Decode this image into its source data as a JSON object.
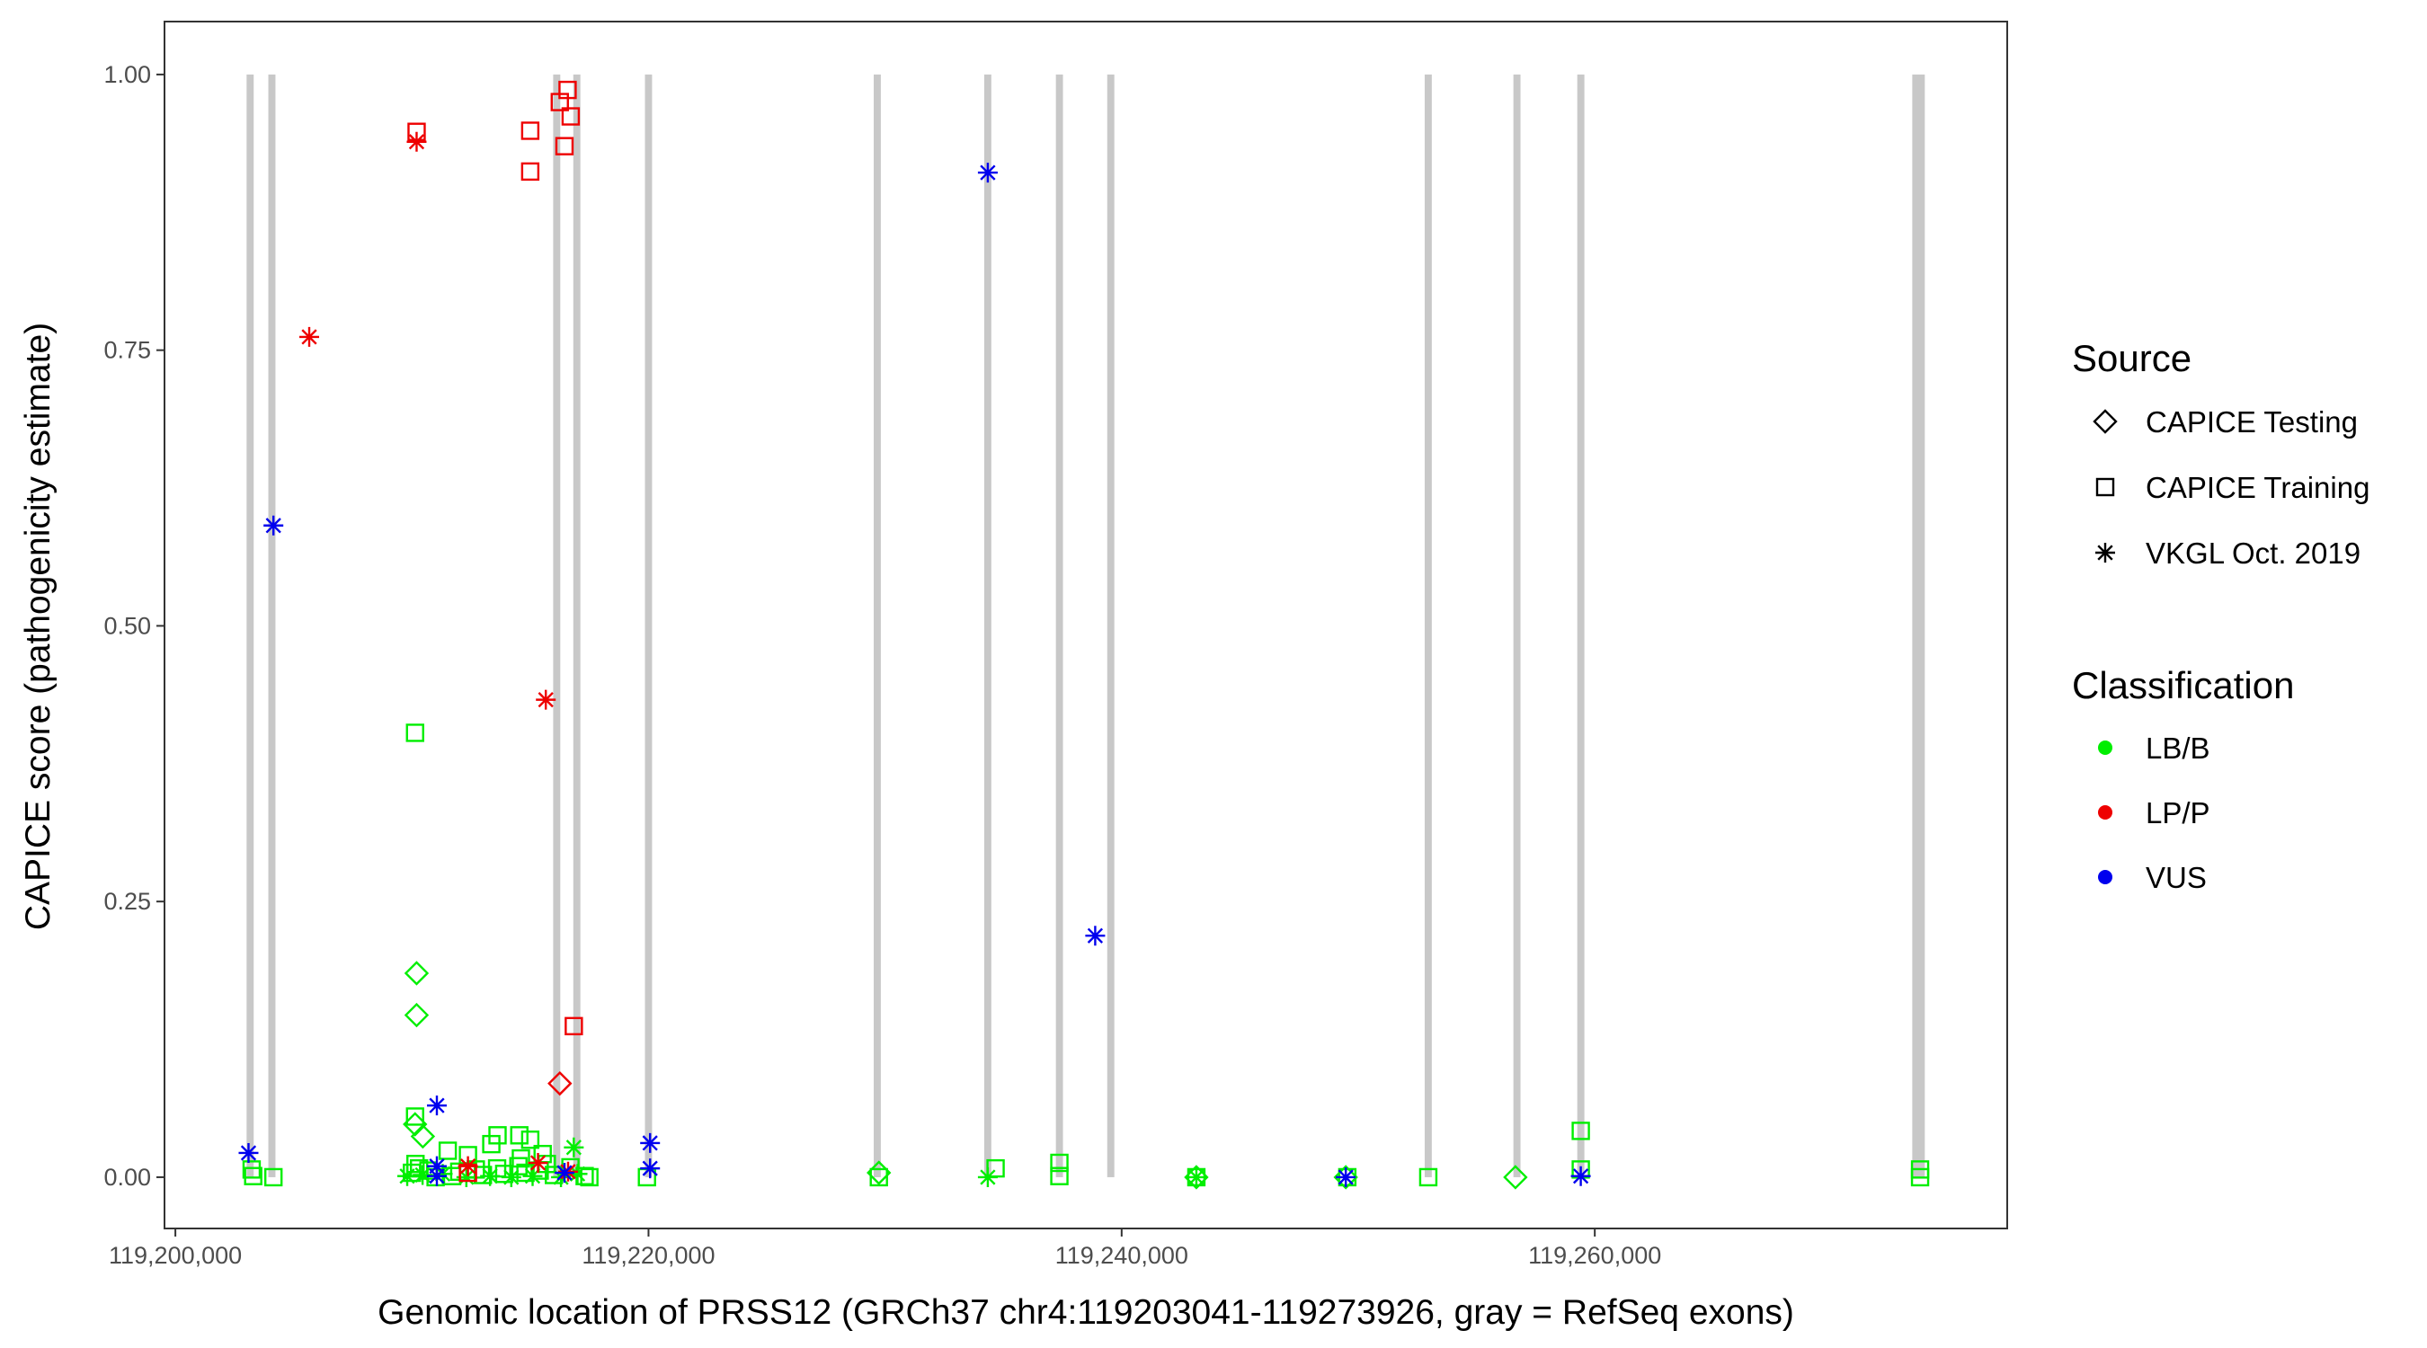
{
  "chart_data": {
    "type": "scatter",
    "title": "",
    "xlabel": "Genomic location of PRSS12 (GRCh37 chr4:119203041-119273926, gray = RefSeq exons)",
    "ylabel": "CAPICE score (pathogenicity estimate)",
    "xlim": [
      119199540,
      119277434
    ],
    "ylim": [
      -0.0465,
      1.048
    ],
    "x_ticks": [
      119200000,
      119220000,
      119240000,
      119260000
    ],
    "x_tick_labels": [
      "119,200,000",
      "119,220,000",
      "119,240,000",
      "119,260,000"
    ],
    "y_ticks": [
      0,
      0.25,
      0.5,
      0.75,
      1.0
    ],
    "y_tick_labels": [
      "0.00",
      "0.25",
      "0.50",
      "0.75",
      "1.00"
    ],
    "grid": false,
    "exon_color": "#c8c8c8",
    "exons": [
      [
        119203010,
        119203310
      ],
      [
        119203930,
        119204230
      ],
      [
        119215970,
        119216270
      ],
      [
        119216820,
        119217120
      ],
      [
        119219850,
        119220150
      ],
      [
        119229520,
        119229820
      ],
      [
        119234190,
        119234490
      ],
      [
        119237220,
        119237520
      ],
      [
        119239390,
        119239690
      ],
      [
        119252810,
        119253110
      ],
      [
        119256560,
        119256860
      ],
      [
        119259260,
        119259560
      ],
      [
        119273420,
        119273950
      ]
    ],
    "legend_placement": "right",
    "legend_source": {
      "title": "Source",
      "items": [
        {
          "label": "CAPICE Testing",
          "shape": "diamond"
        },
        {
          "label": "CAPICE Training",
          "shape": "square"
        },
        {
          "label": "VKGL Oct. 2019",
          "shape": "asterisk"
        }
      ]
    },
    "legend_classification": {
      "title": "Classification",
      "items": [
        {
          "label": "LB/B",
          "color": "#00ee00"
        },
        {
          "label": "LP/P",
          "color": "#ee0000"
        },
        {
          "label": "VUS",
          "color": "#0000ee"
        }
      ]
    },
    "point_fields": [
      "position",
      "capice_score",
      "source_index",
      "classification_index"
    ],
    "points": [
      [
        119210132,
        0.403,
        1,
        0
      ],
      [
        119210197,
        0.185,
        0,
        0
      ],
      [
        119210197,
        0.147,
        0,
        0
      ],
      [
        119210132,
        0.055,
        1,
        0
      ],
      [
        119210132,
        0.048,
        0,
        0
      ],
      [
        119210460,
        0.037,
        0,
        0
      ],
      [
        119211513,
        0.024,
        1,
        0
      ],
      [
        119212368,
        0.02,
        1,
        0
      ],
      [
        119213355,
        0.03,
        1,
        0
      ],
      [
        119213618,
        0.038,
        1,
        0
      ],
      [
        119214539,
        0.038,
        1,
        0
      ],
      [
        119215000,
        0.034,
        1,
        0
      ],
      [
        119215526,
        0.021,
        1,
        0
      ],
      [
        119214605,
        0.017,
        1,
        0
      ],
      [
        119216842,
        0.027,
        2,
        0
      ],
      [
        119209800,
        0.001,
        2,
        0
      ],
      [
        119210000,
        0.004,
        1,
        0
      ],
      [
        119210150,
        0.012,
        1,
        0
      ],
      [
        119210300,
        0.008,
        1,
        0
      ],
      [
        119210450,
        0.002,
        2,
        0
      ],
      [
        119210700,
        0.006,
        1,
        0
      ],
      [
        119211000,
        0.0,
        1,
        0
      ],
      [
        119211300,
        0.003,
        2,
        0
      ],
      [
        119211700,
        0.001,
        1,
        0
      ],
      [
        119212000,
        0.005,
        1,
        0
      ],
      [
        119212300,
        0.0,
        2,
        0
      ],
      [
        119212700,
        0.007,
        1,
        0
      ],
      [
        119213000,
        0.002,
        1,
        0
      ],
      [
        119213300,
        0.001,
        2,
        0
      ],
      [
        119213600,
        0.008,
        1,
        0
      ],
      [
        119213900,
        0.003,
        1,
        0
      ],
      [
        119214200,
        0.0,
        2,
        0
      ],
      [
        119214500,
        0.01,
        1,
        0
      ],
      [
        119214800,
        0.004,
        1,
        0
      ],
      [
        119215100,
        0.001,
        2,
        0
      ],
      [
        119215400,
        0.006,
        1,
        0
      ],
      [
        119215700,
        0.012,
        1,
        0
      ],
      [
        119216000,
        0.002,
        1,
        0
      ],
      [
        119216300,
        0.0,
        2,
        0
      ],
      [
        119216700,
        0.009,
        1,
        0
      ],
      [
        119217000,
        0.003,
        2,
        0
      ],
      [
        119217300,
        0.001,
        1,
        0
      ],
      [
        119217500,
        0.0,
        1,
        0
      ],
      [
        119203224,
        0.007,
        1,
        0
      ],
      [
        119203290,
        0.001,
        1,
        0
      ],
      [
        119204145,
        0.0,
        1,
        0
      ],
      [
        119219934,
        0.0,
        1,
        0
      ],
      [
        119229737,
        0.004,
        0,
        0
      ],
      [
        119229737,
        0.0,
        1,
        0
      ],
      [
        119234671,
        0.008,
        1,
        0
      ],
      [
        119234342,
        0.0,
        2,
        0
      ],
      [
        119237368,
        0.013,
        1,
        0
      ],
      [
        119237368,
        0.001,
        1,
        0
      ],
      [
        119243158,
        0.0,
        0,
        0
      ],
      [
        119243158,
        0.0,
        1,
        0
      ],
      [
        119243158,
        0.0,
        2,
        0
      ],
      [
        119249539,
        0.0,
        1,
        0
      ],
      [
        119249474,
        0.0,
        0,
        0
      ],
      [
        119252961,
        0.0,
        1,
        0
      ],
      [
        119256645,
        0.0,
        0,
        0
      ],
      [
        119259408,
        0.042,
        1,
        0
      ],
      [
        119259408,
        0.007,
        1,
        0
      ],
      [
        119273750,
        0.007,
        1,
        0
      ],
      [
        119273750,
        0.0,
        1,
        0
      ],
      [
        119210197,
        0.948,
        1,
        1
      ],
      [
        119210197,
        0.939,
        2,
        1
      ],
      [
        119215000,
        0.949,
        1,
        1
      ],
      [
        119215000,
        0.912,
        1,
        1
      ],
      [
        119216250,
        0.975,
        1,
        1
      ],
      [
        119216579,
        0.986,
        1,
        1
      ],
      [
        119216711,
        0.962,
        1,
        1
      ],
      [
        119216447,
        0.935,
        1,
        1
      ],
      [
        119205658,
        0.762,
        2,
        1
      ],
      [
        119215658,
        0.433,
        2,
        1
      ],
      [
        119216842,
        0.137,
        1,
        1
      ],
      [
        119216250,
        0.085,
        0,
        1
      ],
      [
        119212368,
        0.01,
        2,
        1
      ],
      [
        119215329,
        0.013,
        2,
        1
      ],
      [
        119212368,
        0.004,
        1,
        1
      ],
      [
        119216600,
        0.005,
        2,
        1
      ],
      [
        119234342,
        0.911,
        2,
        2
      ],
      [
        119204145,
        0.591,
        2,
        2
      ],
      [
        119238882,
        0.219,
        2,
        2
      ],
      [
        119211053,
        0.065,
        2,
        2
      ],
      [
        119203092,
        0.022,
        2,
        2
      ],
      [
        119220066,
        0.031,
        2,
        2
      ],
      [
        119220066,
        0.008,
        2,
        2
      ],
      [
        119211053,
        0.01,
        2,
        2
      ],
      [
        119211053,
        0.001,
        2,
        2
      ],
      [
        119249474,
        0.0,
        2,
        2
      ],
      [
        119259408,
        0.001,
        2,
        2
      ],
      [
        119216450,
        0.004,
        2,
        2
      ]
    ]
  }
}
